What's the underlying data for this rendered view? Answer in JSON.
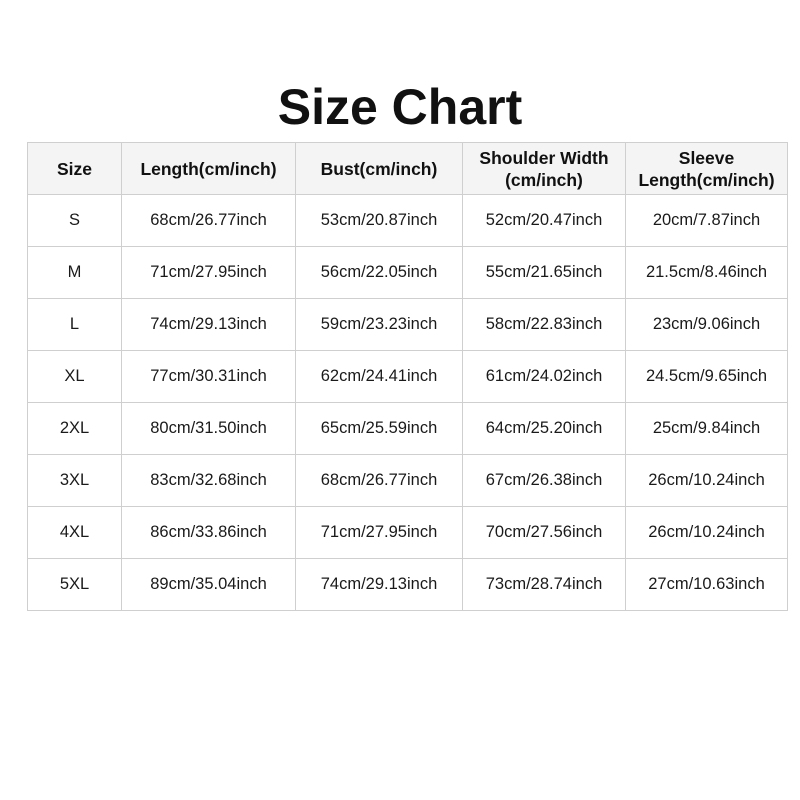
{
  "title": "Size Chart",
  "table": {
    "headers": [
      "Size",
      "Length(cm/inch)",
      "Bust(cm/inch)",
      "Shoulder Width\n(cm/inch)",
      "Sleeve\nLength(cm/inch)"
    ],
    "rows": [
      [
        "S",
        "68cm/26.77inch",
        "53cm/20.87inch",
        "52cm/20.47inch",
        "20cm/7.87inch"
      ],
      [
        "M",
        "71cm/27.95inch",
        "56cm/22.05inch",
        "55cm/21.65inch",
        "21.5cm/8.46inch"
      ],
      [
        "L",
        "74cm/29.13inch",
        "59cm/23.23inch",
        "58cm/22.83inch",
        "23cm/9.06inch"
      ],
      [
        "XL",
        "77cm/30.31inch",
        "62cm/24.41inch",
        "61cm/24.02inch",
        "24.5cm/9.65inch"
      ],
      [
        "2XL",
        "80cm/31.50inch",
        "65cm/25.59inch",
        "64cm/25.20inch",
        "25cm/9.84inch"
      ],
      [
        "3XL",
        "83cm/32.68inch",
        "68cm/26.77inch",
        "67cm/26.38inch",
        "26cm/10.24inch"
      ],
      [
        "4XL",
        "86cm/33.86inch",
        "71cm/27.95inch",
        "70cm/27.56inch",
        "26cm/10.24inch"
      ],
      [
        "5XL",
        "89cm/35.04inch",
        "74cm/29.13inch",
        "73cm/28.74inch",
        "27cm/10.63inch"
      ]
    ]
  }
}
